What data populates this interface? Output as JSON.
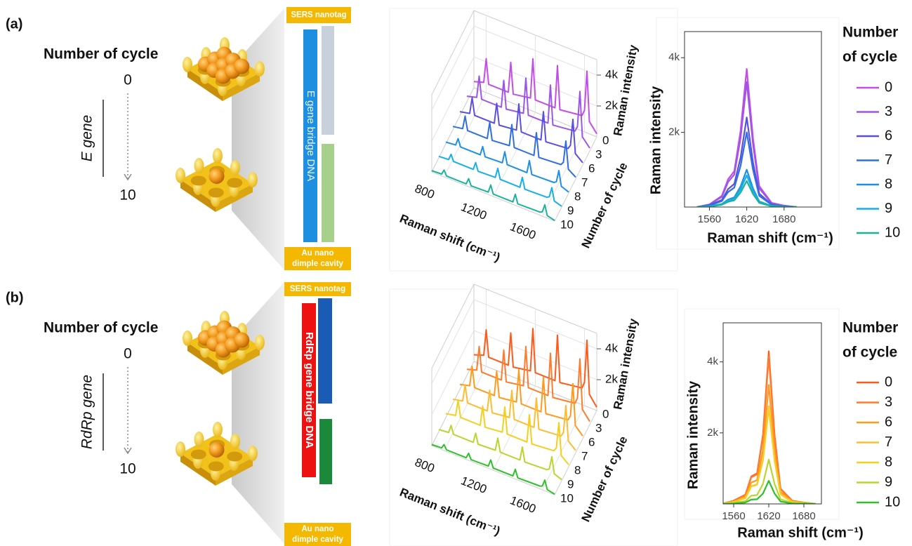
{
  "panels": [
    {
      "label": "(a)",
      "axis_title": "Number of cycle",
      "start": "0",
      "end": "10",
      "gene": "E gene",
      "diagram": {
        "top": "SERS nanotag",
        "bridge": "E gene bridge DNA",
        "bottom": [
          "Au nano",
          "dimple cavity"
        ]
      }
    },
    {
      "label": "(b)",
      "axis_title": "Number of cycle",
      "start": "0",
      "end": "10",
      "gene": "RdRp gene",
      "diagram": {
        "top": "SERS nanotag",
        "bridge": "RdRp gene bridge DNA",
        "bottom": [
          "Au nano",
          "dimple cavity"
        ]
      }
    }
  ],
  "chart_data": [
    {
      "type": "waterfall3d",
      "x_label": "Raman shift (cm⁻¹)",
      "y_label": "Raman intensity",
      "z_label": "Number of cycle",
      "x": [
        700,
        780,
        800,
        820,
        980,
        1000,
        1020,
        1160,
        1180,
        1200,
        1360,
        1380,
        1400,
        1580,
        1600,
        1620,
        1640,
        1700
      ],
      "xlim": [
        700,
        1700
      ],
      "xticks": [
        800,
        1200,
        1600
      ],
      "ylim": [
        0,
        5000
      ],
      "yticks": [
        {
          "value": 2000,
          "label": "2k"
        },
        {
          "value": 4000,
          "label": "4k"
        }
      ],
      "z_categories": [
        "0",
        "3",
        "6",
        "7",
        "8",
        "9",
        "10"
      ],
      "series": [
        {
          "color": "#c34de8",
          "values": [
            400,
            600,
            2200,
            600,
            600,
            2600,
            600,
            800,
            3400,
            800,
            800,
            3600,
            800,
            1000,
            1400,
            4000,
            800,
            200
          ]
        },
        {
          "color": "#9d55e6",
          "values": [
            360,
            540,
            1980,
            540,
            540,
            2340,
            540,
            720,
            3060,
            720,
            720,
            3240,
            720,
            900,
            1260,
            3600,
            720,
            180
          ]
        },
        {
          "color": "#5a4fe0",
          "values": [
            270,
            410,
            1490,
            410,
            410,
            1760,
            410,
            540,
            2300,
            540,
            540,
            2430,
            540,
            680,
            950,
            2700,
            540,
            140
          ]
        },
        {
          "color": "#2f6fe3",
          "values": [
            220,
            330,
            1210,
            330,
            330,
            1430,
            330,
            440,
            1870,
            440,
            440,
            1980,
            440,
            550,
            770,
            2200,
            440,
            110
          ]
        },
        {
          "color": "#1e8fe6",
          "values": [
            120,
            180,
            660,
            180,
            180,
            780,
            180,
            240,
            1020,
            240,
            240,
            1080,
            240,
            300,
            420,
            1200,
            240,
            60
          ]
        },
        {
          "color": "#16b0e8",
          "values": [
            100,
            150,
            550,
            150,
            150,
            650,
            150,
            200,
            850,
            200,
            200,
            900,
            200,
            250,
            350,
            1000,
            200,
            50
          ]
        },
        {
          "color": "#1ab39a",
          "values": [
            80,
            120,
            440,
            120,
            120,
            520,
            120,
            160,
            680,
            160,
            160,
            720,
            160,
            200,
            280,
            800,
            160,
            40
          ]
        }
      ]
    },
    {
      "type": "line",
      "x_label": "Raman shift (cm⁻¹)",
      "y_label": "Raman intensity",
      "legend_title": [
        "Number",
        "of cycle"
      ],
      "x": [
        1540,
        1560,
        1580,
        1590,
        1600,
        1610,
        1620,
        1630,
        1640,
        1660,
        1680,
        1700
      ],
      "xlim": [
        1520,
        1740
      ],
      "xticks": [
        1560,
        1620,
        1680
      ],
      "ylim": [
        0,
        4700
      ],
      "yticks": [
        {
          "value": 2000,
          "label": "2k"
        },
        {
          "value": 4000,
          "label": "4k"
        }
      ],
      "series": [
        {
          "name": "0",
          "color": "#c34de8",
          "values": [
            0,
            70,
            300,
            740,
            960,
            2040,
            3700,
            1850,
            560,
            110,
            40,
            0
          ]
        },
        {
          "name": "3",
          "color": "#9d55e6",
          "values": [
            0,
            70,
            270,
            670,
            870,
            1840,
            3350,
            1680,
            500,
            100,
            30,
            0
          ]
        },
        {
          "name": "6",
          "color": "#5a4fe0",
          "values": [
            0,
            50,
            190,
            480,
            620,
            1320,
            2400,
            1200,
            360,
            70,
            20,
            0
          ]
        },
        {
          "name": "7",
          "color": "#2f6fe3",
          "values": [
            0,
            40,
            160,
            400,
            520,
            1100,
            2000,
            1000,
            300,
            60,
            20,
            0
          ]
        },
        {
          "name": "8",
          "color": "#1e8fe6",
          "values": [
            0,
            20,
            80,
            200,
            260,
            550,
            1000,
            500,
            150,
            30,
            10,
            0
          ]
        },
        {
          "name": "9",
          "color": "#16b0e8",
          "values": [
            0,
            20,
            70,
            170,
            220,
            470,
            850,
            430,
            130,
            30,
            10,
            0
          ]
        },
        {
          "name": "10",
          "color": "#1ab39a",
          "values": [
            0,
            10,
            60,
            140,
            180,
            390,
            700,
            350,
            110,
            20,
            10,
            0
          ]
        }
      ]
    },
    {
      "type": "waterfall3d",
      "x_label": "Raman shift (cm⁻¹)",
      "y_label": "Raman intensity",
      "z_label": "Number of cycle",
      "x": [
        700,
        780,
        800,
        820,
        980,
        1000,
        1020,
        1160,
        1180,
        1200,
        1360,
        1380,
        1400,
        1580,
        1600,
        1620,
        1640,
        1700
      ],
      "xlim": [
        700,
        1700
      ],
      "xticks": [
        800,
        1200,
        1600
      ],
      "ylim": [
        0,
        5000
      ],
      "yticks": [
        {
          "value": 2000,
          "label": "2k"
        },
        {
          "value": 4000,
          "label": "4k"
        }
      ],
      "z_categories": [
        "0",
        "3",
        "6",
        "7",
        "8",
        "9",
        "10"
      ],
      "series": [
        {
          "color": "#ff5a1a",
          "values": [
            430,
            650,
            2370,
            650,
            650,
            2800,
            650,
            860,
            3660,
            860,
            860,
            3870,
            860,
            1080,
            1510,
            4300,
            860,
            220
          ]
        },
        {
          "color": "#ff7b2e",
          "values": [
            400,
            600,
            2200,
            600,
            600,
            2600,
            600,
            800,
            3400,
            800,
            800,
            3600,
            800,
            1000,
            1400,
            4000,
            800,
            200
          ]
        },
        {
          "color": "#ff9a1c",
          "values": [
            330,
            500,
            1820,
            500,
            500,
            2150,
            500,
            660,
            2810,
            660,
            660,
            2970,
            660,
            830,
            1160,
            3300,
            660,
            170
          ]
        },
        {
          "color": "#ffbc33",
          "values": [
            280,
            420,
            1540,
            420,
            420,
            1820,
            420,
            560,
            2380,
            560,
            560,
            2520,
            560,
            700,
            980,
            2800,
            560,
            140
          ]
        },
        {
          "color": "#f5cf1f",
          "values": [
            260,
            390,
            1430,
            390,
            390,
            1690,
            390,
            520,
            2210,
            520,
            520,
            2340,
            520,
            650,
            910,
            2600,
            520,
            130
          ]
        },
        {
          "color": "#b9d52e",
          "values": [
            130,
            200,
            720,
            200,
            200,
            850,
            200,
            260,
            1110,
            260,
            260,
            1170,
            260,
            330,
            460,
            1300,
            260,
            70
          ]
        },
        {
          "color": "#2fc02a",
          "values": [
            70,
            110,
            390,
            110,
            110,
            460,
            110,
            140,
            600,
            140,
            140,
            630,
            140,
            180,
            250,
            700,
            140,
            40
          ]
        }
      ]
    },
    {
      "type": "line",
      "x_label": "Raman shift (cm⁻¹)",
      "y_label": "Raman intensity",
      "legend_title": [
        "Number",
        "of cycle"
      ],
      "x": [
        1540,
        1560,
        1580,
        1590,
        1600,
        1610,
        1620,
        1630,
        1640,
        1660,
        1680,
        1700
      ],
      "xlim": [
        1542,
        1710
      ],
      "xticks": [
        1560,
        1620,
        1680
      ],
      "ylim": [
        0,
        5100
      ],
      "yticks": [
        {
          "value": 2000,
          "label": "2k"
        },
        {
          "value": 4000,
          "label": "4k"
        }
      ],
      "series": [
        {
          "name": "0",
          "color": "#ff5a1a",
          "values": [
            0,
            90,
            260,
            770,
            860,
            1940,
            4300,
            1940,
            430,
            90,
            40,
            0
          ]
        },
        {
          "name": "3",
          "color": "#ff7b2e",
          "values": [
            0,
            80,
            250,
            750,
            830,
            1870,
            4150,
            1870,
            420,
            80,
            40,
            0
          ]
        },
        {
          "name": "6",
          "color": "#ff9a1c",
          "values": [
            0,
            70,
            200,
            600,
            670,
            1510,
            3350,
            1510,
            340,
            70,
            30,
            0
          ]
        },
        {
          "name": "7",
          "color": "#ffbc33",
          "values": [
            0,
            60,
            170,
            500,
            550,
            1240,
            2750,
            1240,
            280,
            60,
            30,
            0
          ]
        },
        {
          "name": "8",
          "color": "#f5cf1f",
          "values": [
            0,
            50,
            160,
            490,
            540,
            1220,
            2700,
            1220,
            270,
            50,
            30,
            0
          ]
        },
        {
          "name": "9",
          "color": "#b9d52e",
          "values": [
            0,
            30,
            80,
            230,
            250,
            560,
            1250,
            560,
            130,
            30,
            10,
            0
          ]
        },
        {
          "name": "10",
          "color": "#2fc02a",
          "values": [
            0,
            10,
            40,
            120,
            130,
            290,
            650,
            290,
            70,
            10,
            10,
            0
          ]
        }
      ]
    }
  ]
}
